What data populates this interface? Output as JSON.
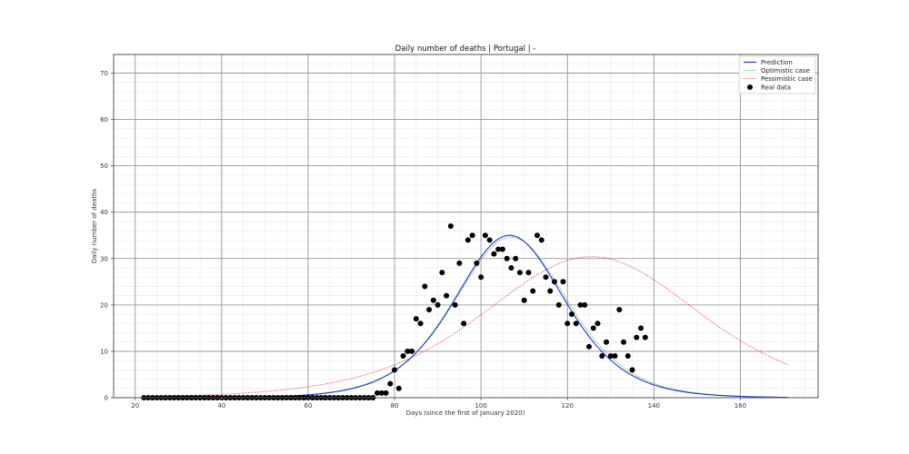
{
  "chart_data": {
    "type": "line",
    "title": "Daily number of deaths | Portugal | -",
    "xlabel": "Days (since the first of January 2020)",
    "ylabel": "Daily number of deaths",
    "xlim": [
      15,
      178
    ],
    "ylim": [
      0,
      74
    ],
    "x_ticks": [
      20,
      40,
      60,
      80,
      100,
      120,
      140,
      160
    ],
    "y_ticks": [
      0,
      10,
      20,
      30,
      40,
      50,
      60,
      70
    ],
    "x_minor_step": 5,
    "y_minor_step": 2,
    "grid": true,
    "legend_position": "upper right",
    "legend": [
      {
        "label": "Prediction",
        "style": "solid-line",
        "color": "#1f35d6"
      },
      {
        "label": "Optimistic case",
        "style": "dotted-line",
        "color": "#2e9e2e"
      },
      {
        "label": "Pessimistic case",
        "style": "dotted-line",
        "color": "#e03030"
      },
      {
        "label": "Real data",
        "style": "marker",
        "color": "#000000"
      }
    ],
    "series": [
      {
        "name": "Prediction",
        "kind": "curve",
        "color": "#1f35d6",
        "model": {
          "peak": 35,
          "center": 106.6,
          "scale": 8.6
        },
        "x_range": [
          22,
          171
        ]
      },
      {
        "name": "Optimistic case",
        "kind": "curve",
        "color": "#2e9e2e",
        "model": {
          "peak": 34.6,
          "center": 107.0,
          "scale": 8.8
        },
        "x_range": [
          22,
          171
        ]
      },
      {
        "name": "Pessimistic case",
        "kind": "curve",
        "color": "#e03030",
        "model": {
          "peak": 30.4,
          "center": 125.6,
          "scale": 16.8
        },
        "x_range": [
          22,
          171
        ]
      },
      {
        "name": "Real data",
        "kind": "scatter",
        "color": "#000000",
        "x": [
          22,
          23,
          24,
          25,
          26,
          27,
          28,
          29,
          30,
          31,
          32,
          33,
          34,
          35,
          36,
          37,
          38,
          39,
          40,
          41,
          42,
          43,
          44,
          45,
          46,
          47,
          48,
          49,
          50,
          51,
          52,
          53,
          54,
          55,
          56,
          57,
          58,
          59,
          60,
          61,
          62,
          63,
          64,
          65,
          66,
          67,
          68,
          69,
          70,
          71,
          72,
          73,
          74,
          75,
          76,
          77,
          78,
          79,
          80,
          81,
          82,
          83,
          84,
          85,
          86,
          87,
          88,
          89,
          90,
          91,
          92,
          93,
          94,
          95,
          96,
          97,
          98,
          99,
          100,
          101,
          102,
          103,
          104,
          105,
          106,
          107,
          108,
          109,
          110,
          111,
          112,
          113,
          114,
          115,
          116,
          117,
          118,
          119,
          120,
          121,
          122,
          123,
          124,
          125,
          126,
          127,
          128,
          129,
          130,
          131,
          132,
          133,
          134,
          135,
          136,
          137,
          138
        ],
        "y": [
          0,
          0,
          0,
          0,
          0,
          0,
          0,
          0,
          0,
          0,
          0,
          0,
          0,
          0,
          0,
          0,
          0,
          0,
          0,
          0,
          0,
          0,
          0,
          0,
          0,
          0,
          0,
          0,
          0,
          0,
          0,
          0,
          0,
          0,
          0,
          0,
          0,
          0,
          0,
          0,
          0,
          0,
          0,
          0,
          0,
          0,
          0,
          0,
          0,
          0,
          0,
          0,
          0,
          0,
          1,
          1,
          1,
          3,
          6,
          2,
          9,
          10,
          10,
          17,
          16,
          24,
          19,
          21,
          20,
          27,
          22,
          37,
          20,
          29,
          16,
          34,
          35,
          29,
          26,
          35,
          34,
          31,
          32,
          32,
          30,
          28,
          30,
          27,
          21,
          27,
          23,
          35,
          34,
          26,
          23,
          25,
          20,
          25,
          16,
          18,
          16,
          20,
          20,
          11,
          15,
          16,
          9,
          12,
          9,
          9,
          19,
          12,
          9,
          6,
          13,
          15,
          13
        ]
      }
    ]
  },
  "colors": {
    "major_grid": "#8c8c8c",
    "minor_grid": "#ececec",
    "frame": "#555555"
  }
}
